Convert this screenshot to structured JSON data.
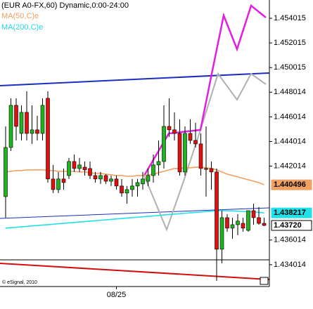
{
  "chart_data": {
    "type": "candlestick",
    "title": "(EUR A0-FX,60) Dynamic,0:00-24:00",
    "copyright": "© eSignal, 2010",
    "categories": [
      null,
      null,
      null,
      null,
      null,
      null,
      null,
      null,
      null,
      null,
      null,
      null,
      null,
      null,
      null,
      null,
      null,
      null,
      null,
      null,
      null,
      "08/25",
      null,
      null,
      null,
      null,
      null,
      null,
      null,
      null,
      null,
      null,
      null,
      null,
      null,
      null,
      null,
      null,
      null,
      null,
      null,
      null,
      null,
      null,
      null,
      null,
      null,
      null,
      null,
      null
    ],
    "open": [
      1.43954,
      1.44353,
      1.44695,
      1.44467,
      1.44638,
      1.44467,
      1.44496,
      1.44467,
      1.44752,
      1.44097,
      1.44011,
      1.44097,
      1.44125,
      1.44239,
      1.44182,
      1.44193,
      1.44182,
      1.44125,
      1.44097,
      1.44125,
      1.44079,
      1.44097,
      1.4404,
      1.43983,
      1.44011,
      1.4404,
      1.44057,
      1.44079,
      1.44125,
      1.44211,
      1.44239,
      1.44524,
      1.44496,
      1.44467,
      1.44154,
      1.44467,
      1.4441,
      1.44382,
      1.44182,
      1.44182,
      1.44154,
      1.43527,
      1.43783,
      1.43698,
      1.43726,
      1.43737,
      1.4368,
      1.4384,
      1.43783,
      1.43737
    ],
    "high": [
      1.44524,
      1.44752,
      1.44752,
      1.44695,
      1.44809,
      1.44695,
      1.4461,
      1.44752,
      1.44809,
      1.44211,
      1.44154,
      1.44182,
      1.44268,
      1.44296,
      1.44268,
      1.44239,
      1.44239,
      1.44154,
      1.44154,
      1.44136,
      1.44125,
      1.44125,
      1.44097,
      1.4404,
      1.44097,
      1.44097,
      1.44154,
      1.44182,
      1.44296,
      1.4441,
      1.44695,
      1.44752,
      1.44638,
      1.44581,
      1.44524,
      1.44581,
      1.44553,
      1.44467,
      1.44524,
      1.44239,
      1.44182,
      1.4384,
      1.43812,
      1.43783,
      1.43812,
      1.43783,
      1.4384,
      1.43897,
      1.43869,
      1.43783
    ],
    "low": [
      1.43783,
      1.44325,
      1.4441,
      1.4441,
      1.4441,
      1.44382,
      1.4441,
      1.4441,
      1.44068,
      1.43983,
      1.43983,
      1.44011,
      1.44097,
      1.44154,
      1.44154,
      1.44125,
      1.44097,
      1.44068,
      1.44057,
      1.44057,
      1.4404,
      1.44011,
      1.43954,
      1.43897,
      1.43954,
      1.43954,
      1.44011,
      1.4404,
      1.44068,
      1.44125,
      1.44182,
      1.44439,
      1.4441,
      1.44125,
      1.44125,
      1.44382,
      1.44353,
      1.44125,
      1.43954,
      1.44011,
      1.4327,
      1.43413,
      1.43669,
      1.43612,
      1.43641,
      1.43669,
      1.43669,
      1.43726,
      1.43726,
      1.43715
    ],
    "close": [
      1.44353,
      1.44695,
      1.44524,
      1.44638,
      1.44467,
      1.44496,
      1.44467,
      1.44695,
      1.44097,
      1.44011,
      1.44097,
      1.44068,
      1.44239,
      1.44182,
      1.44211,
      1.44171,
      1.44125,
      1.44097,
      1.44125,
      1.44079,
      1.44097,
      1.4404,
      1.43983,
      1.44011,
      1.4404,
      1.44068,
      1.44097,
      1.44125,
      1.44211,
      1.44239,
      1.44524,
      1.44496,
      1.44467,
      1.44154,
      1.44467,
      1.4441,
      1.44382,
      1.44182,
      1.44175,
      1.44154,
      1.43527,
      1.43783,
      1.43698,
      1.43726,
      1.43755,
      1.43698,
      1.4384,
      1.43783,
      1.43737,
      1.4372
    ],
    "last_close_label": "1.43720",
    "up_color": "#1fb51f",
    "down_color": "#e01010",
    "series": [
      {
        "name": "MA(50,C)e",
        "color": "#f0a060",
        "last_value_label": "1.440496",
        "values": [
          1.44154,
          1.44159,
          1.44165,
          1.44165,
          1.44171,
          1.44171,
          1.44171,
          1.44171,
          1.44165,
          1.44165,
          1.44159,
          1.44159,
          1.44159,
          1.44159,
          1.44154,
          1.44154,
          1.44148,
          1.44142,
          1.44142,
          1.44136,
          1.44131,
          1.44125,
          1.44125,
          1.44119,
          1.44119,
          1.44125,
          1.44125,
          1.44131,
          1.44136,
          1.44148,
          1.44159,
          1.44171,
          1.44182,
          1.44182,
          1.44188,
          1.44188,
          1.44193,
          1.44193,
          1.44188,
          1.44182,
          1.44171,
          1.44154,
          1.44136,
          1.44125,
          1.44114,
          1.44102,
          1.44091,
          1.44079,
          1.44068,
          1.440496
        ]
      },
      {
        "name": "MA(200,C)e",
        "color": "#22e0e8",
        "last_value_label": "1.438217",
        "values": [
          1.43698,
          1.43702,
          1.43705,
          1.43709,
          1.43712,
          1.43716,
          1.43719,
          1.43723,
          1.43726,
          1.4373,
          1.43734,
          1.43737,
          1.43741,
          1.43744,
          1.43748,
          1.43751,
          1.43755,
          1.43758,
          1.43762,
          1.43765,
          1.43769,
          1.43773,
          1.43776,
          1.4378,
          1.43783,
          1.43787,
          1.4379,
          1.43794,
          1.43797,
          1.43801,
          1.43805,
          1.43808,
          1.43812,
          1.43815,
          1.43819,
          1.43822,
          1.43826,
          1.43829,
          1.43833,
          1.43836,
          1.4384,
          1.4384,
          1.43839,
          1.43838,
          1.43836,
          1.43834,
          1.43832,
          1.43829,
          1.43826,
          1.438217
        ]
      }
    ],
    "ylim": [
      1.43224,
      1.4555
    ],
    "yticks": [
      1.434014,
      1.436014,
      1.442014,
      1.444014,
      1.446014,
      1.448014,
      1.450015,
      1.452015,
      1.454015
    ]
  }
}
